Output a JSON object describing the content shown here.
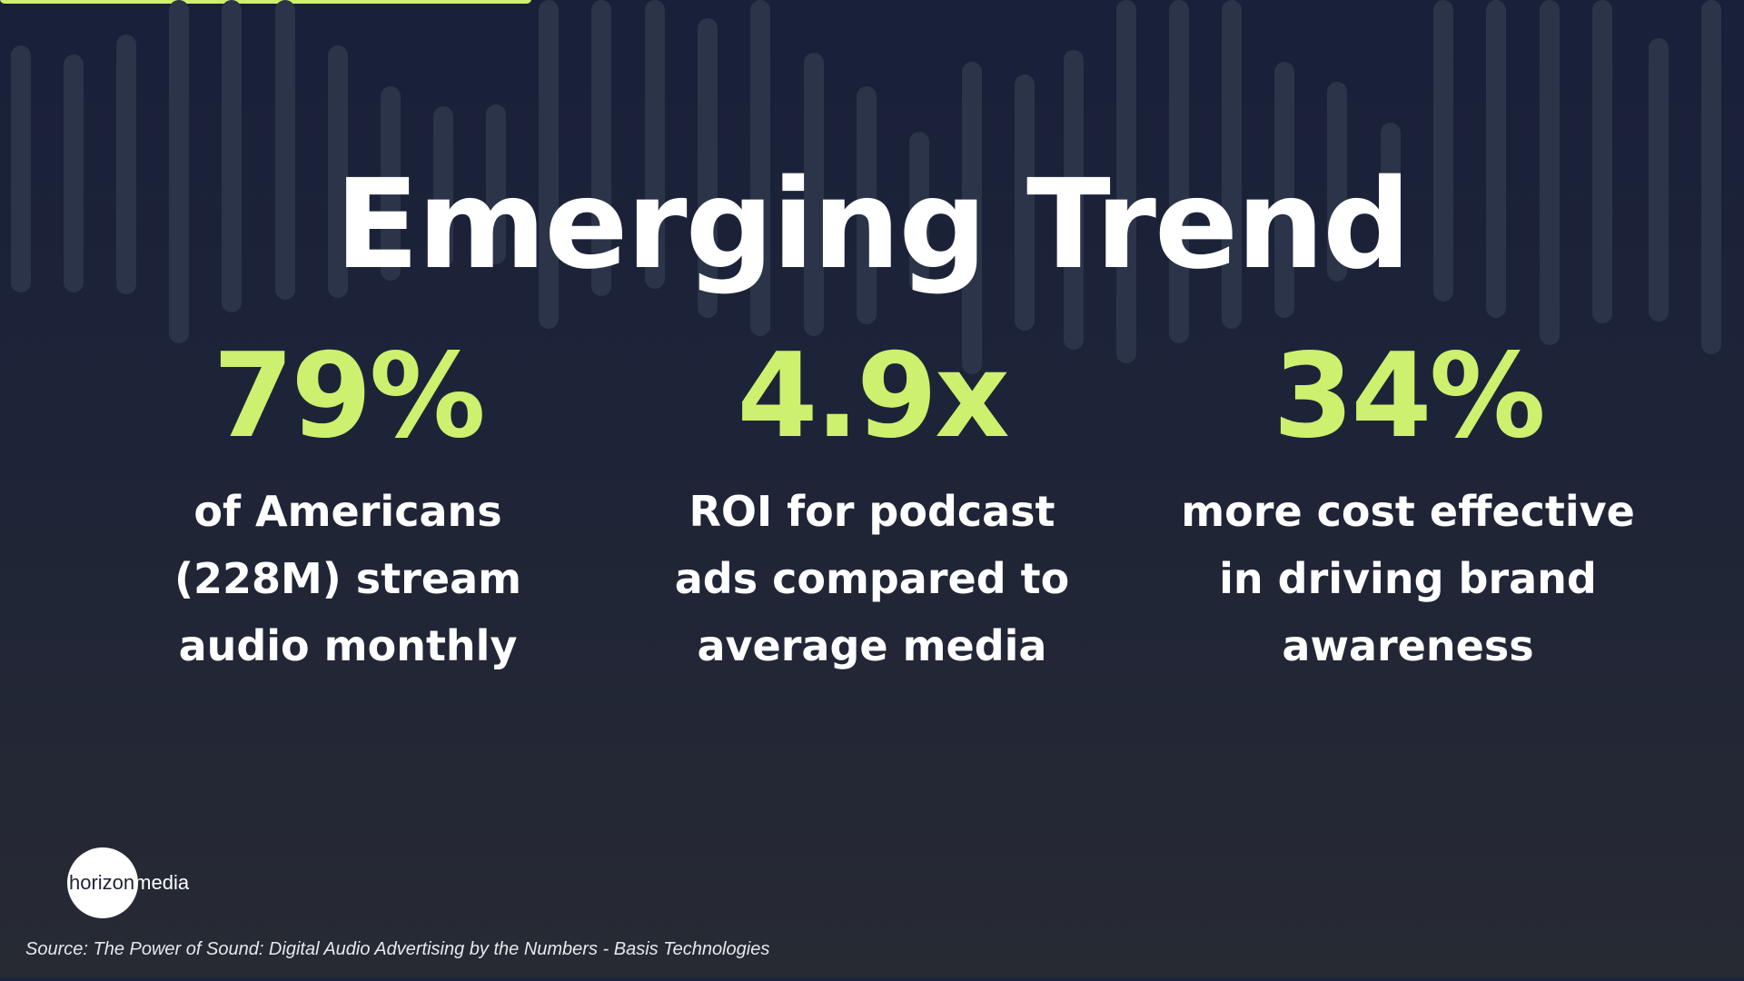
{
  "slide": {
    "title": "Emerging Trend",
    "stats": [
      {
        "value": "79%",
        "description": "of Americans (228M) stream audio monthly"
      },
      {
        "value": "4.9x",
        "description": "ROI for podcast ads compared to average media"
      },
      {
        "value": "34%",
        "description": "more cost effective in driving brand awareness"
      }
    ],
    "logo": {
      "word1": "horizon",
      "word2": "media"
    },
    "source": "Source: The Power of Sound: Digital Audio Advertising by the Numbers - Basis Technologies"
  },
  "colors": {
    "background_top": "#18203a",
    "background_bottom": "#272a33",
    "accent": "#cdf06f",
    "text": "#ffffff",
    "waveform": "#2b3448"
  }
}
